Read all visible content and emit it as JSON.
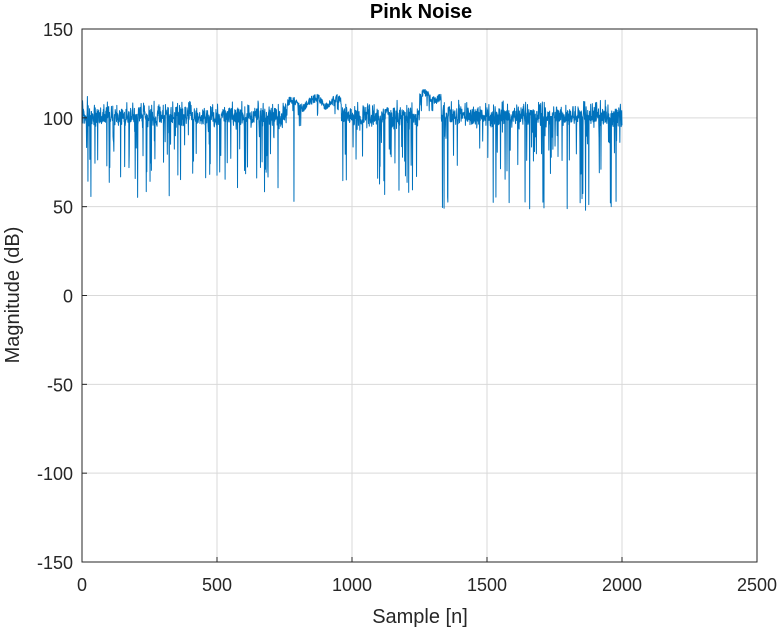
{
  "chart_data": {
    "type": "line",
    "title": "Pink Noise",
    "xlabel": "Sample [n]",
    "ylabel": "Magnitude (dB)",
    "xlim": [
      0,
      2500
    ],
    "ylim": [
      -150,
      150
    ],
    "xticks": [
      0,
      500,
      1000,
      1500,
      2000,
      2500
    ],
    "yticks": [
      -150,
      -100,
      -50,
      0,
      50,
      100,
      150
    ],
    "xtick_labels": [
      "0",
      "500",
      "1000",
      "1500",
      "2000",
      "2500"
    ],
    "ytick_labels": [
      "-150",
      "-100",
      "-50",
      "0",
      "50",
      "100",
      "150"
    ],
    "grid": true,
    "line_color": "#0072BD",
    "x_range": [
      1,
      2000
    ],
    "baseline_segments": [
      {
        "x": [
          1,
          700
        ],
        "mean": 101,
        "upper": 110,
        "lower": 55
      },
      {
        "x": [
          760,
          850
        ],
        "mean": 108,
        "upper": 112,
        "lower": 90
      },
      {
        "x": [
          850,
          960
        ],
        "mean": 109,
        "upper": 113,
        "lower": 95
      },
      {
        "x": [
          960,
          1250
        ],
        "mean": 101,
        "upper": 110,
        "lower": 56
      },
      {
        "x": [
          1250,
          1330
        ],
        "mean": 112,
        "upper": 115,
        "lower": 104
      },
      {
        "x": [
          1330,
          2000
        ],
        "mean": 101,
        "upper": 110,
        "lower": 48
      }
    ],
    "notable_points": [
      {
        "x": 20,
        "y": 112
      },
      {
        "x": 785,
        "y": 53
      },
      {
        "x": 1265,
        "y": 115
      },
      {
        "x": 1865,
        "y": 48
      },
      {
        "x": 1960,
        "y": 50
      }
    ]
  }
}
